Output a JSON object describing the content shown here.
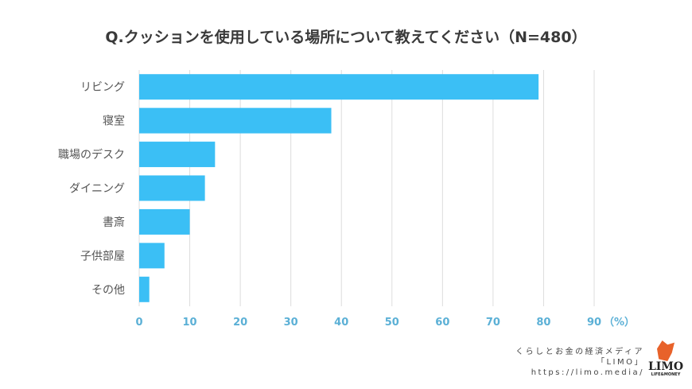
{
  "chart_data": {
    "type": "bar",
    "orientation": "horizontal",
    "title": "Q.クッションを使用している場所について教えてください（N=480）",
    "categories": [
      "リビング",
      "寝室",
      "職場のデスク",
      "ダイニング",
      "書斎",
      "子供部屋",
      "その他"
    ],
    "values": [
      79,
      38,
      15,
      13,
      10,
      5,
      2
    ],
    "xlim": [
      0,
      90
    ],
    "xticks": [
      "0",
      "10",
      "20",
      "30",
      "40",
      "50",
      "60",
      "70",
      "80",
      "90"
    ],
    "xunit": "（%）",
    "grid": true,
    "bar_color": "#3bbff5",
    "tick_color": "#5bb0d6"
  },
  "footer": {
    "line1": "くらしとお金の経済メディア",
    "line2": "「LIMO」",
    "line3": "https://limo.media/",
    "logo_text": "LIMO",
    "logo_sub": "LIFE&MONEY"
  }
}
